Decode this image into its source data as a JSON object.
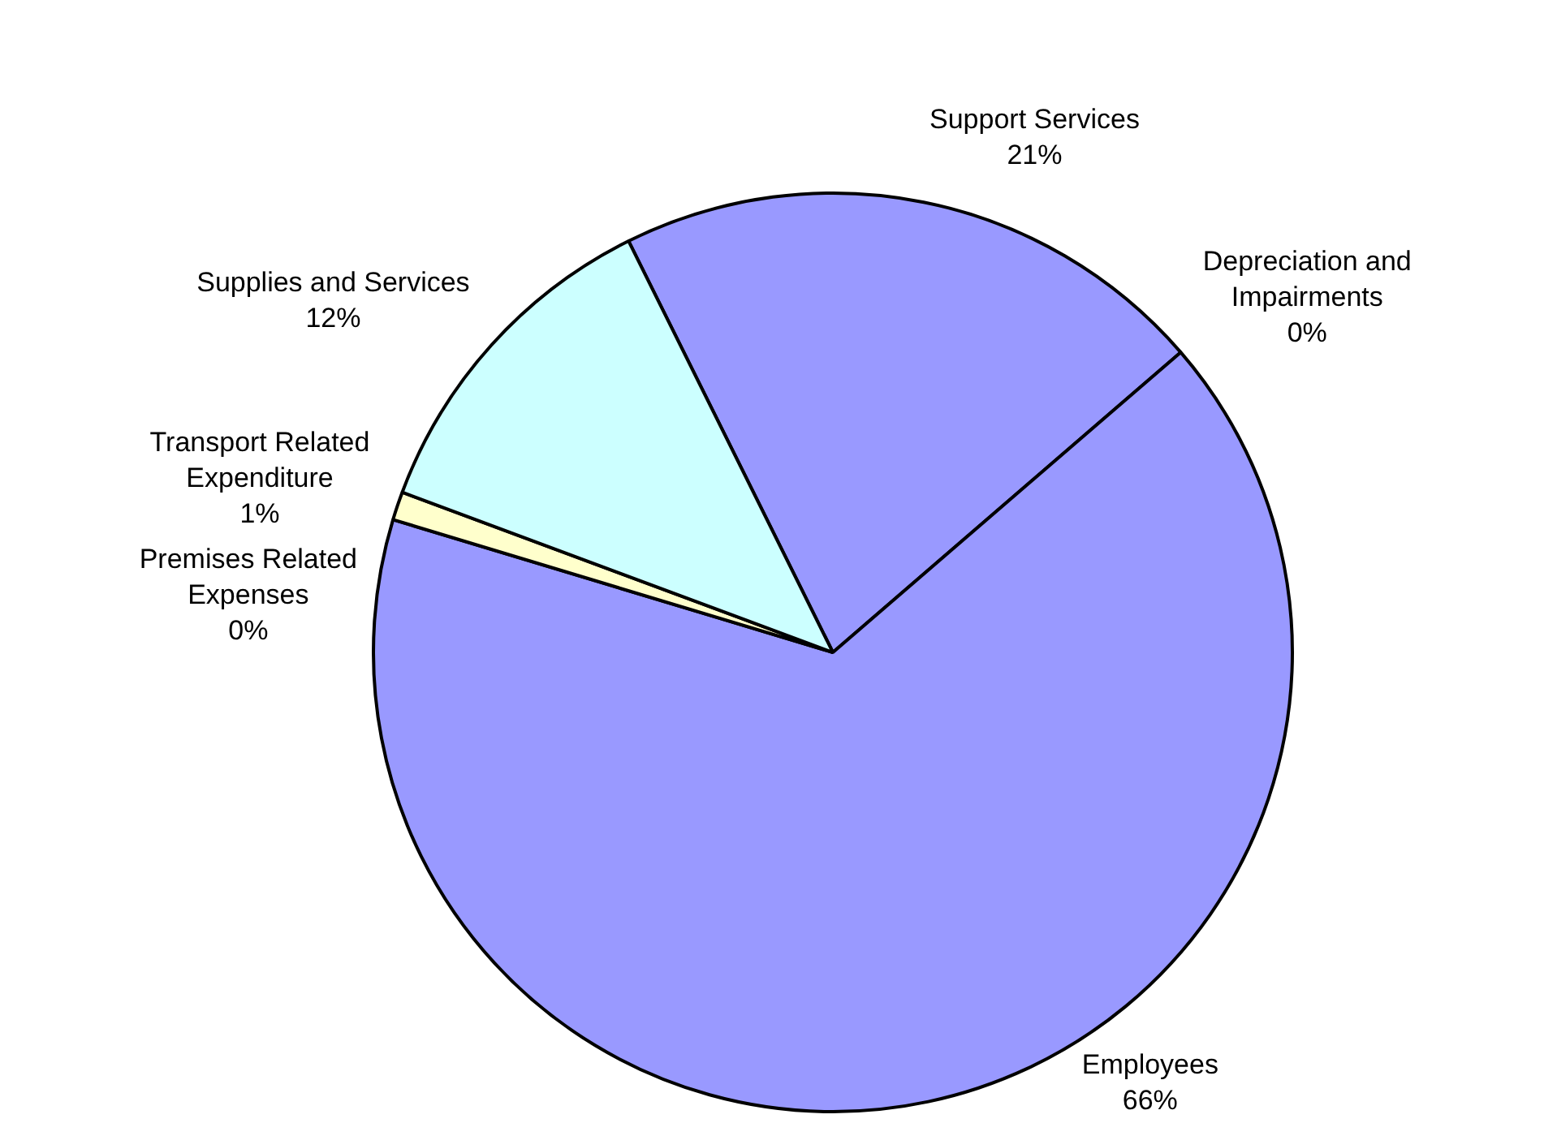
{
  "chart_data": {
    "type": "pie",
    "categories": [
      "Support Services",
      "Depreciation and Impairments",
      "Employees",
      "Premises Related Expenses",
      "Transport Related Expenditure",
      "Supplies and Services"
    ],
    "values": [
      21,
      0,
      66,
      0,
      1,
      12
    ],
    "value_labels": [
      "21%",
      "0%",
      "66%",
      "0%",
      "1%",
      "12%"
    ],
    "colors": [
      "#9999ff",
      "#993366",
      "#9999ff",
      "#660066",
      "#ffffcc",
      "#ccffff"
    ],
    "legend": false
  }
}
